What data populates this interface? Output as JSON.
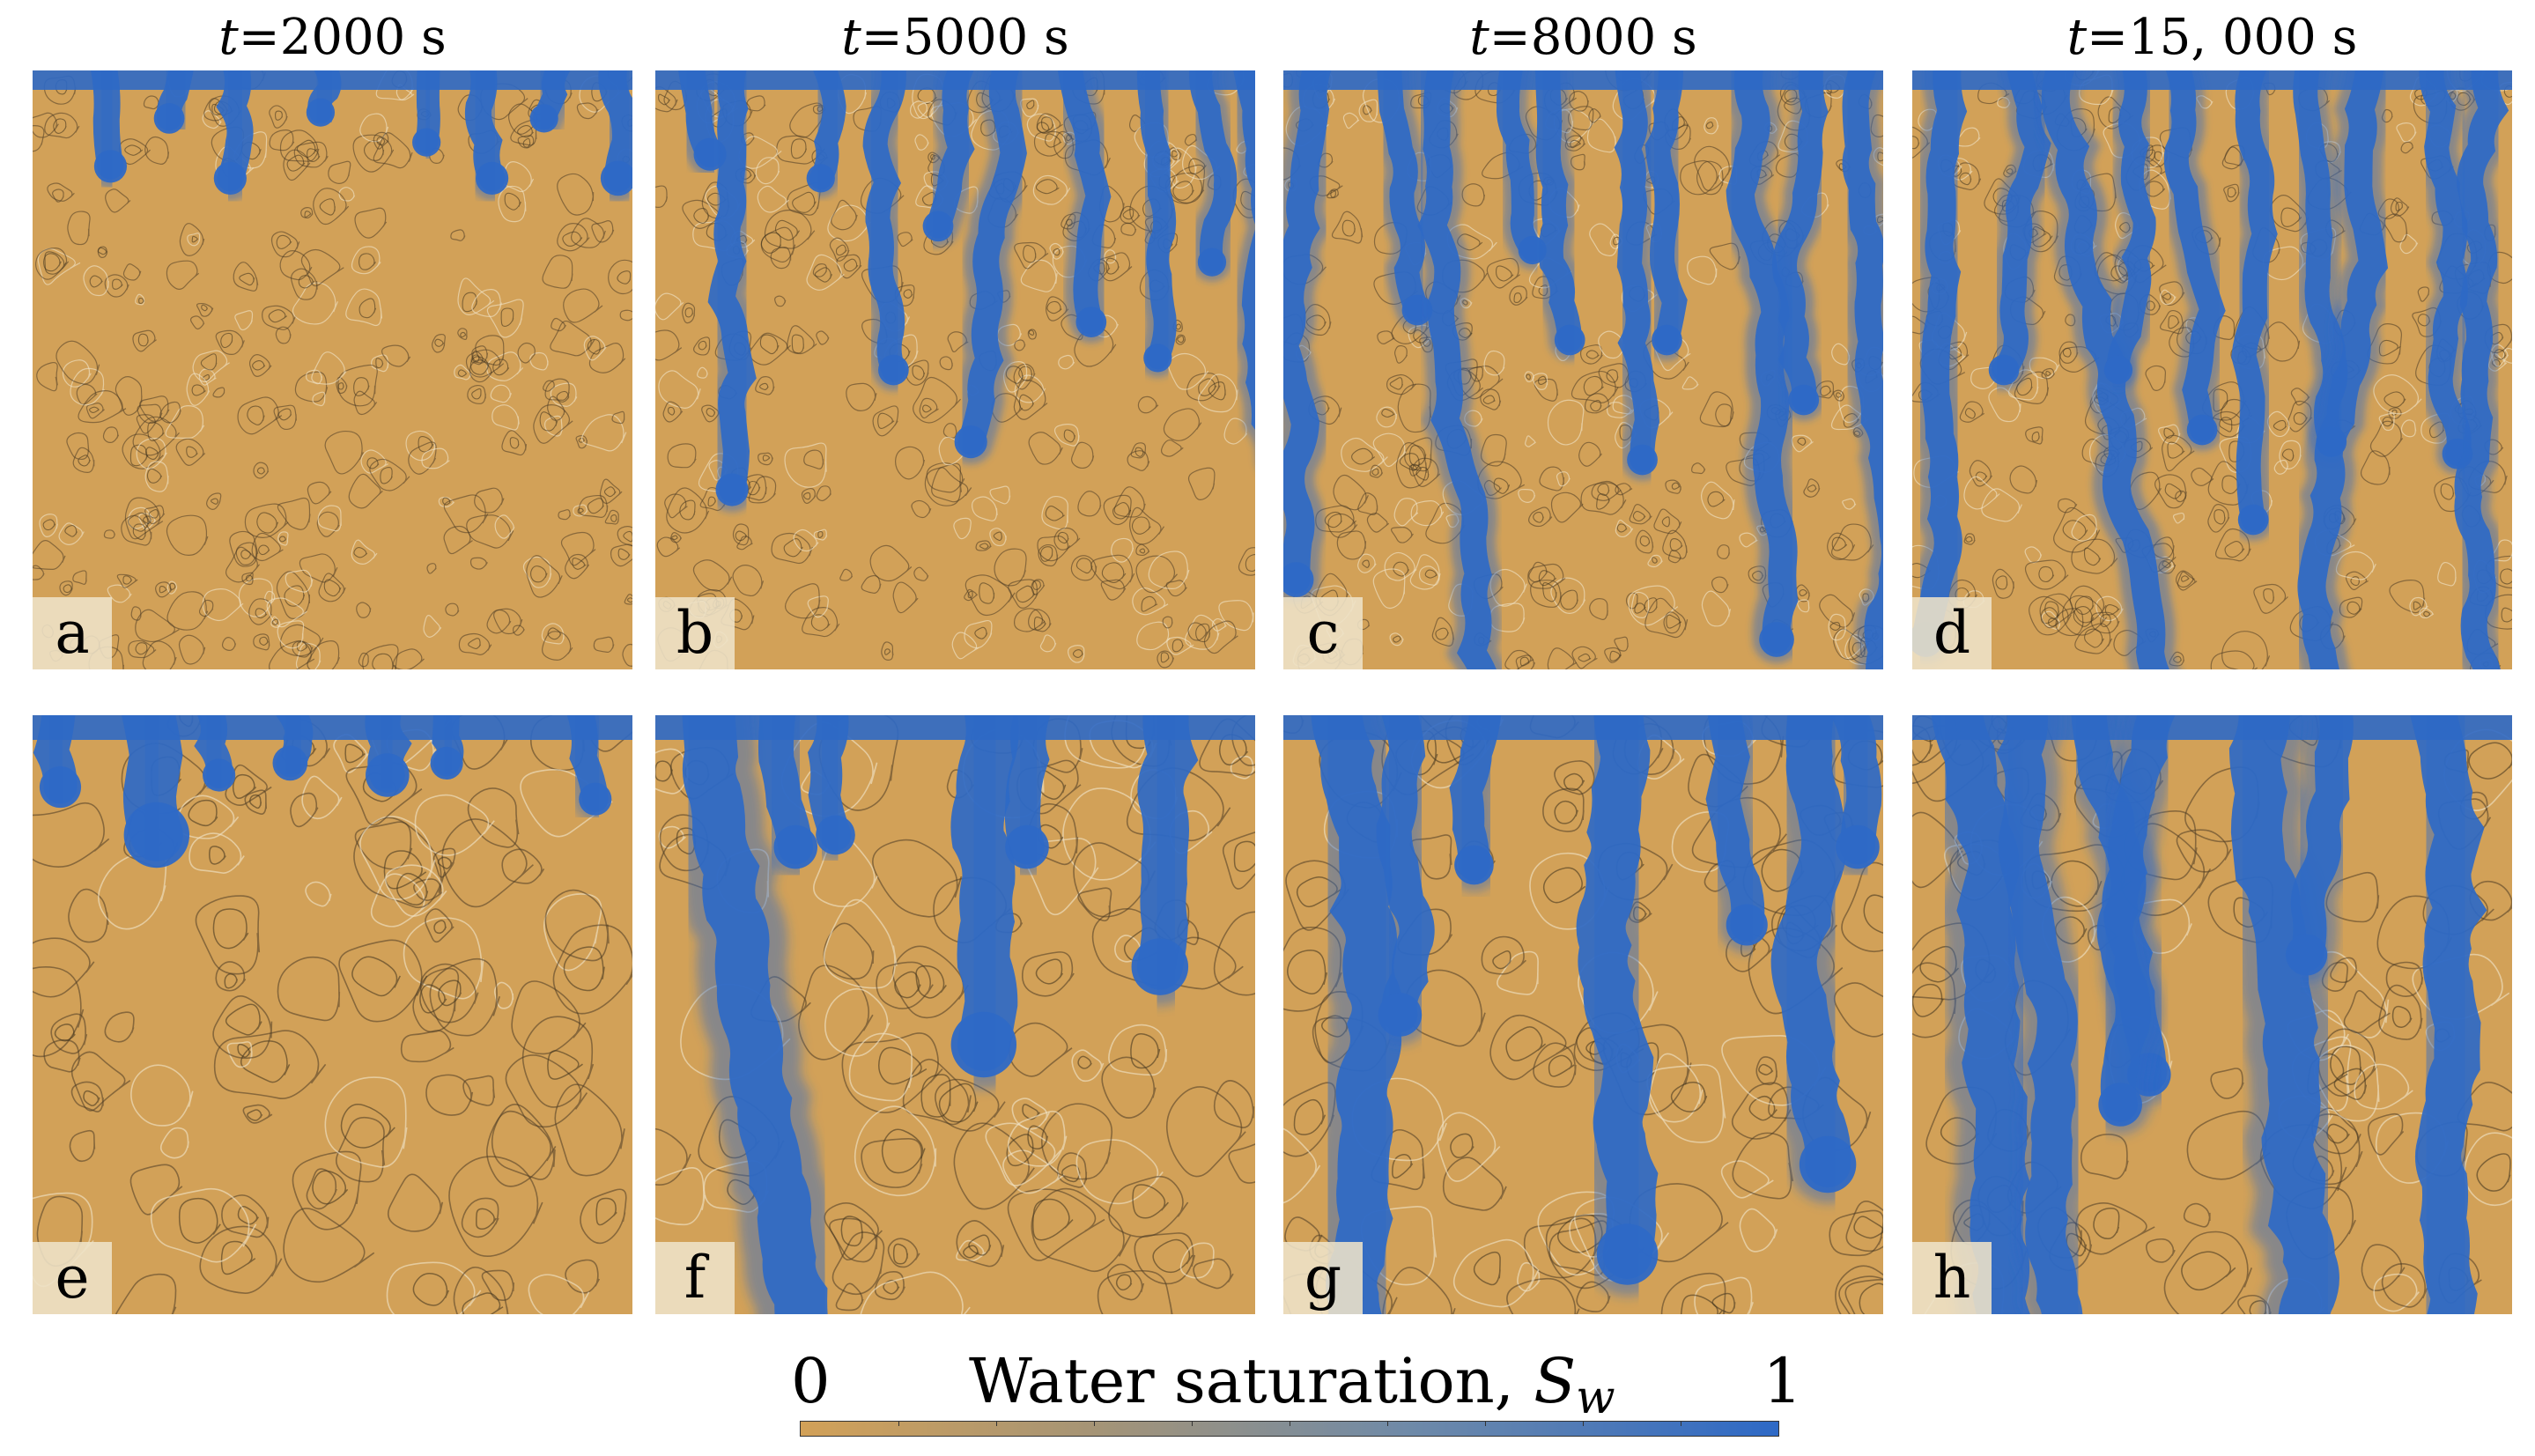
{
  "columns": [
    {
      "time_label": "2000 s"
    },
    {
      "time_label": "5000 s"
    },
    {
      "time_label": "8000 s"
    },
    {
      "time_label": "15, 000 s"
    }
  ],
  "time_symbol": "t",
  "panel_labels": [
    "a",
    "b",
    "c",
    "d",
    "e",
    "f",
    "g",
    "h"
  ],
  "colorbar": {
    "min_label": "0",
    "max_label": "1",
    "title_text": "Water saturation, ",
    "symbol": "S",
    "subscript": "w",
    "color_low": "#d2a158",
    "color_high": "#2e69c6"
  }
}
